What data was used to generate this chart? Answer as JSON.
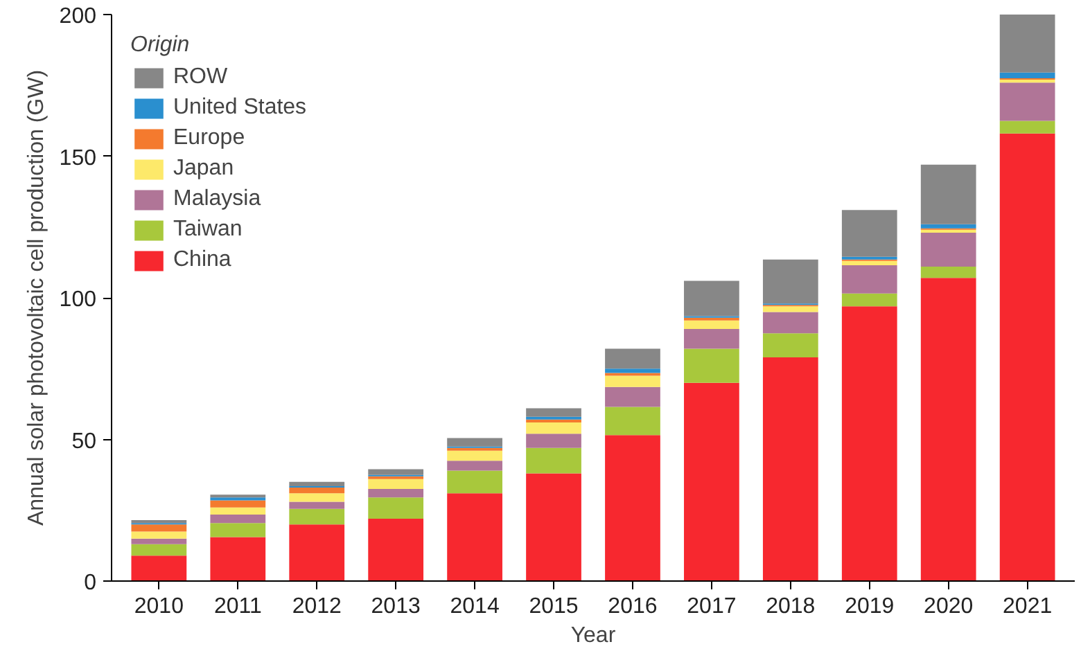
{
  "chart_data": {
    "type": "bar",
    "stacked": true,
    "xlabel": "Year",
    "ylabel": "Annual solar photovoltaic cell production (GW)",
    "legend_title": "Origin",
    "legend": "top left",
    "grid": false,
    "categories": [
      "2010",
      "2011",
      "2012",
      "2013",
      "2014",
      "2015",
      "2016",
      "2017",
      "2018",
      "2019",
      "2020",
      "2021"
    ],
    "ylim": [
      0,
      200
    ],
    "yticks": [
      0,
      50,
      100,
      150,
      200
    ],
    "series": [
      {
        "name": "China",
        "color": "#f7282f",
        "values": [
          9,
          15.5,
          20,
          22,
          31,
          38,
          51.5,
          70,
          79,
          97,
          107,
          158
        ]
      },
      {
        "name": "Taiwan",
        "color": "#a8c83c",
        "values": [
          4,
          5,
          5.5,
          7.5,
          8,
          9,
          10,
          12,
          8.5,
          4.5,
          4,
          4.5
        ]
      },
      {
        "name": "Malaysia",
        "color": "#b07597",
        "values": [
          2,
          3,
          2.5,
          3,
          3.5,
          5,
          7,
          7,
          7.5,
          10,
          12,
          13.5
        ]
      },
      {
        "name": "Japan",
        "color": "#fde96a",
        "values": [
          2.5,
          2.5,
          3,
          3.5,
          3.5,
          4,
          4,
          3,
          2,
          1.5,
          1,
          1
        ]
      },
      {
        "name": "Europe",
        "color": "#f47a2e",
        "values": [
          2.5,
          2.5,
          2,
          1,
          1,
          1,
          1,
          1,
          0.5,
          0.5,
          0.5,
          0.5
        ]
      },
      {
        "name": "United States",
        "color": "#2a8fcf",
        "values": [
          0.5,
          1,
          0.5,
          0.5,
          0.5,
          1,
          1.5,
          0.5,
          0.5,
          1,
          1.5,
          2
        ]
      },
      {
        "name": "ROW",
        "color": "#878787",
        "values": [
          1,
          1,
          1.5,
          2,
          3,
          3,
          7,
          12.5,
          15.5,
          16.5,
          21,
          20.5
        ]
      }
    ]
  }
}
